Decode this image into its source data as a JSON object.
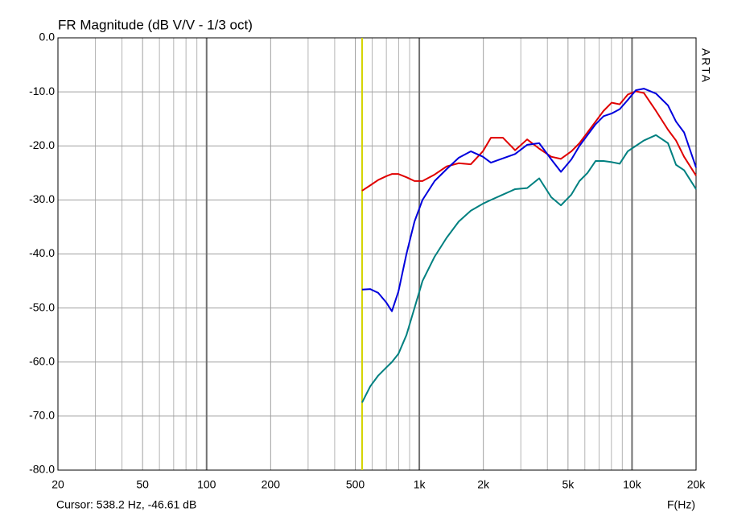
{
  "chart_data": {
    "type": "line",
    "title": "FR Magnitude (dB V/V - 1/3 oct)",
    "x_label": "F(Hz)",
    "side_label": "ARTA",
    "x_scale": "log",
    "xlim": [
      20,
      20000
    ],
    "xticks": [
      20,
      50,
      100,
      200,
      500,
      {
        "value": 1000,
        "label": "1k"
      },
      {
        "value": 2000,
        "label": "2k"
      },
      {
        "value": 5000,
        "label": "5k"
      },
      {
        "value": 10000,
        "label": "10k"
      },
      {
        "value": 20000,
        "label": "20k"
      }
    ],
    "xminor_ticks": [
      30,
      40,
      60,
      70,
      80,
      90,
      300,
      400,
      600,
      700,
      800,
      900,
      3000,
      4000,
      6000,
      7000,
      8000,
      9000
    ],
    "ylim": [
      -80,
      0
    ],
    "yticks": [
      {
        "value": 0,
        "label": "0.0"
      },
      {
        "value": -10,
        "label": "-10.0"
      },
      {
        "value": -20,
        "label": "-20.0"
      },
      {
        "value": -30,
        "label": "-30.0"
      },
      {
        "value": -40,
        "label": "-40.0"
      },
      {
        "value": -50,
        "label": "-50.0"
      },
      {
        "value": -60,
        "label": "-60.0"
      },
      {
        "value": -70,
        "label": "-70.0"
      },
      {
        "value": -80,
        "label": "-80.0"
      }
    ],
    "grid": true,
    "cursor": {
      "x": 538.2,
      "color": "#d4d400",
      "label": "Cursor: 538.2 Hz, -46.61 dB"
    },
    "x": [
      538,
      588,
      641,
      700,
      743,
      797,
      870,
      949,
      1035,
      1180,
      1344,
      1532,
      1746,
      1990,
      2170,
      2474,
      2820,
      3213,
      3661,
      4172,
      4632,
      5188,
      5660,
      6176,
      6738,
      7351,
      8020,
      8750,
      9548,
      10417,
      11364,
      12950,
      14758,
      16102,
      17566,
      20000
    ],
    "series": [
      {
        "color": "#e00000",
        "values": [
          -28.3,
          -27.3,
          -26.3,
          -25.6,
          -25.2,
          -25.2,
          -25.8,
          -26.5,
          -26.5,
          -25.3,
          -23.8,
          -23.2,
          -23.4,
          -21,
          -18.5,
          -18.5,
          -20.8,
          -18.8,
          -20.5,
          -22,
          -22.4,
          -21,
          -19.5,
          -17.5,
          -15.5,
          -13.5,
          -12,
          -12.3,
          -10.5,
          -9.9,
          -10.2,
          -13.5,
          -17,
          -19,
          -22,
          -25.5
        ]
      },
      {
        "color": "#0000dd",
        "values": [
          -46.6,
          -46.5,
          -47.2,
          -49,
          -50.6,
          -47,
          -40,
          -34,
          -30,
          -26.5,
          -24.3,
          -22.2,
          -21,
          -22,
          -23.1,
          -22.3,
          -21.5,
          -19.8,
          -19.5,
          -22.5,
          -24.8,
          -22.5,
          -20,
          -18,
          -16,
          -14.5,
          -14,
          -13.2,
          -11.5,
          -9.7,
          -9.4,
          -10.3,
          -12.5,
          -15.5,
          -17.5,
          -24
        ]
      },
      {
        "color": "#008080",
        "values": [
          -67.5,
          -64.5,
          -62.5,
          -61,
          -60,
          -58.5,
          -55,
          -50,
          -45,
          -40.5,
          -37,
          -34,
          -32,
          -30.7,
          -30,
          -29,
          -28,
          -27.8,
          -26,
          -29.5,
          -31,
          -29,
          -26.5,
          -25,
          -22.8,
          -22.8,
          -23,
          -23.3,
          -21,
          -20,
          -19,
          -18,
          -19.5,
          -23.5,
          -24.5,
          -28
        ]
      }
    ]
  }
}
